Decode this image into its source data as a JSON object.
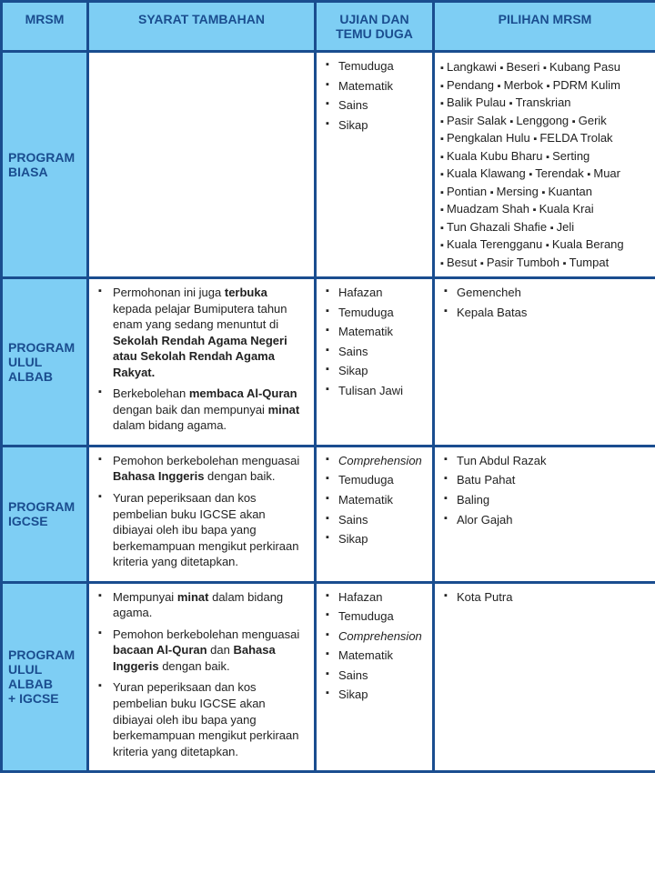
{
  "headers": {
    "mrsm": "MRSM",
    "syarat": "SYARAT TAMBAHAN",
    "ujian": "UJIAN DAN TEMU DUGA",
    "pilihan": "PILIHAN MRSM"
  },
  "colors": {
    "border": "#1a4d8f",
    "header_bg": "#7ecef4",
    "header_text": "#1a4d8f",
    "cell_bg": "#ffffff",
    "text": "#222222"
  },
  "col_widths": [
    "95px",
    "250px",
    "130px",
    "245px"
  ],
  "rows": [
    {
      "program": "PROGRAM BIASA",
      "syarat_html": "",
      "ujian": [
        "Temuduga",
        "Matematik",
        "Sains",
        "Sikap"
      ],
      "pilihan_inline": [
        "Langkawi",
        "Beseri",
        "Kubang Pasu",
        "Pendang",
        "Merbok",
        "PDRM Kulim",
        "Balik Pulau",
        "Transkrian",
        "Pasir Salak",
        "Lenggong",
        "Gerik",
        "Pengkalan Hulu",
        "FELDA Trolak",
        "Kuala Kubu Bharu",
        "Serting",
        "Kuala Klawang",
        "Terendak",
        "Muar",
        "Pontian",
        "Mersing",
        "Kuantan",
        "Muadzam Shah",
        "Kuala Krai",
        "Tun Ghazali Shafie",
        "Jeli",
        "Kuala Terengganu",
        "Kuala Berang",
        "Besut",
        "Pasir Tumboh",
        "Tumpat"
      ],
      "pilihan_breaks": [
        3,
        6,
        8,
        11,
        13,
        15,
        18,
        21,
        23,
        25,
        27,
        30
      ]
    },
    {
      "program": "PROGRAM ULUL ALBAB",
      "syarat_html": "<li>Permohonan ini juga <b>terbuka</b> kepada pelajar Bumiputera tahun enam yang sedang menuntut di <b>Sekolah Rendah Agama Negeri atau Sekolah Rendah Agama Rakyat.</b></li><li>Berkebolehan <b>membaca Al-Quran</b> dengan baik dan mempunyai <b>minat</b> dalam bidang agama.</li>",
      "ujian": [
        "Hafazan",
        "Temuduga",
        "Matematik",
        "Sains",
        "Sikap",
        "Tulisan Jawi"
      ],
      "pilihan": [
        "Gemencheh",
        "Kepala Batas"
      ]
    },
    {
      "program": "PROGRAM IGCSE",
      "syarat_html": "<li>Pemohon berkebolehan menguasai <b>Bahasa Inggeris</b> dengan baik.</li><li>Yuran peperiksaan dan kos pembelian buku IGCSE akan dibiayai oleh ibu bapa yang berkemampuan mengikut perkiraan kriteria yang ditetapkan.</li>",
      "ujian": [
        "<i>Comprehension</i>",
        "Temuduga",
        "Matematik",
        "Sains",
        "Sikap"
      ],
      "pilihan": [
        "Tun Abdul Razak",
        "Batu Pahat",
        "Baling",
        "Alor Gajah"
      ]
    },
    {
      "program": "PROGRAM ULUL ALBAB + IGCSE",
      "syarat_html": "<li>Mempunyai <b>minat</b> dalam bidang agama.</li><li>Pemohon berkebolehan menguasai <b>bacaan Al-Quran</b> dan <b>Bahasa Inggeris</b> dengan baik.</li><li>Yuran peperiksaan dan kos pembelian buku IGCSE akan dibiayai oleh ibu bapa yang berkemampuan mengikut perkiraan kriteria yang ditetapkan.</li>",
      "ujian": [
        "Hafazan",
        "Temuduga",
        "<i>Comprehension</i>",
        "Matematik",
        "Sains",
        "Sikap"
      ],
      "pilihan": [
        "Kota Putra"
      ]
    }
  ]
}
